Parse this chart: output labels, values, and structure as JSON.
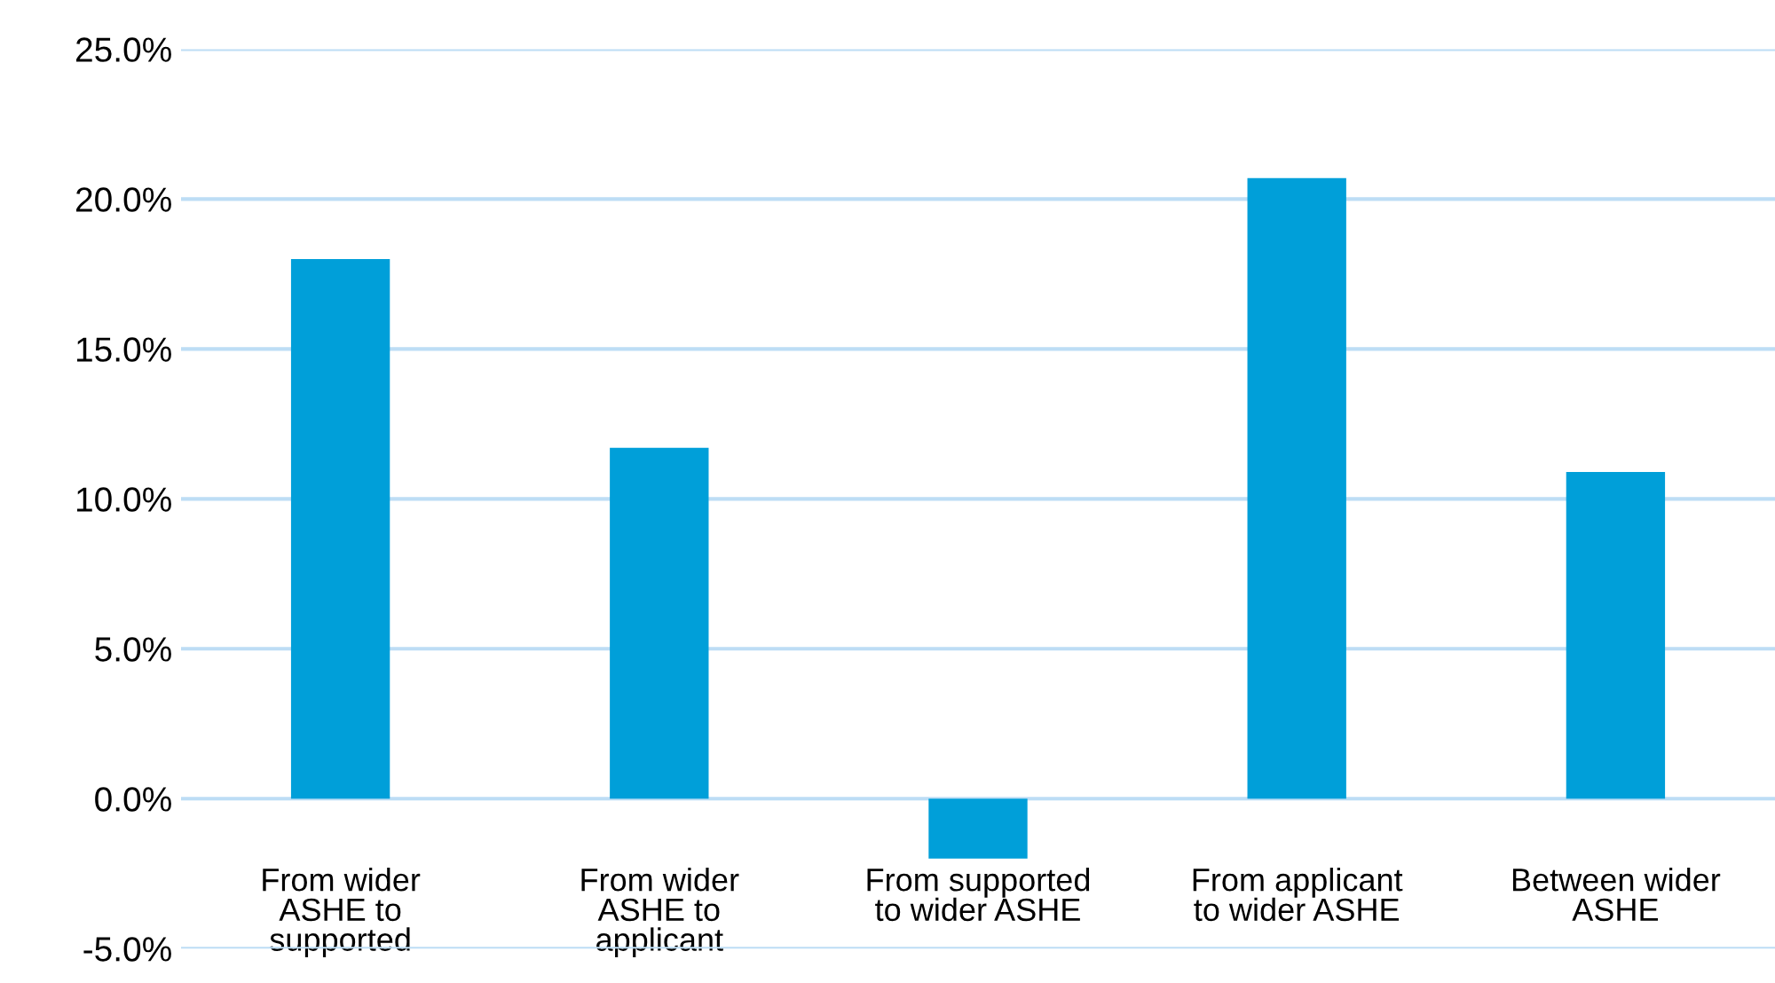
{
  "chart_data": {
    "type": "bar",
    "categories": [
      "From wider\nASHE to\nsupported",
      "From wider\nASHE to\napplicant",
      "From supported\nto wider ASHE",
      "From applicant\nto wider ASHE",
      "Between wider\nASHE"
    ],
    "values": [
      18.0,
      11.7,
      -2.0,
      20.7,
      10.9
    ],
    "color": "#009fd9",
    "ylim": [
      -5,
      25
    ],
    "yticks": [
      {
        "value": -5,
        "label": "-5.0%"
      },
      {
        "value": 0,
        "label": "0.0%"
      },
      {
        "value": 5,
        "label": "5.0%"
      },
      {
        "value": 10,
        "label": "10.0%"
      },
      {
        "value": 15,
        "label": "15.0%"
      },
      {
        "value": 20,
        "label": "20.0%"
      },
      {
        "value": 25,
        "label": "25.0%"
      }
    ],
    "grid": "y"
  }
}
